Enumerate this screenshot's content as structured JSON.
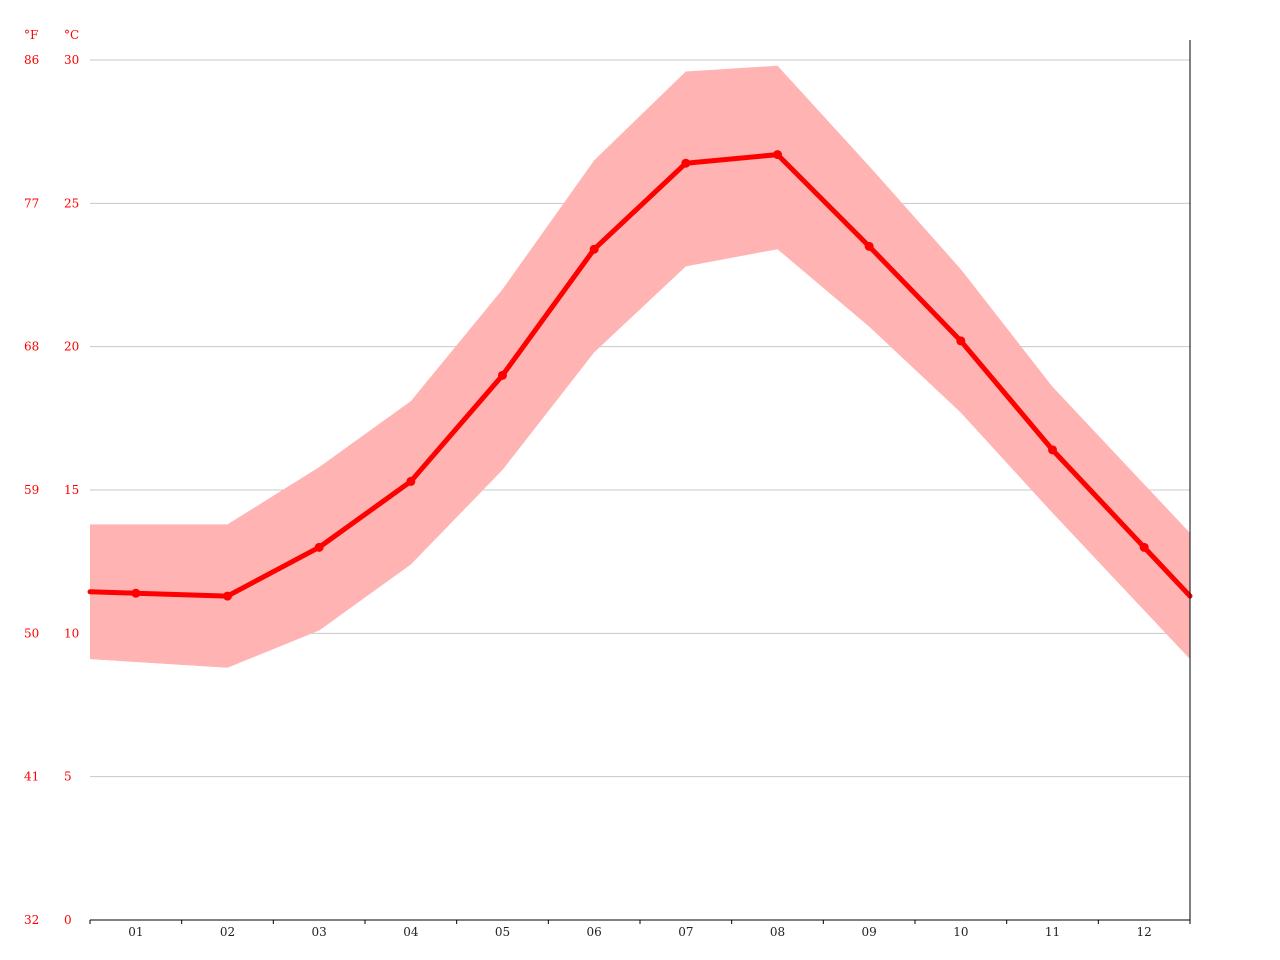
{
  "chart_data": {
    "type": "line",
    "units": {
      "fahrenheit": "°F",
      "celsius": "°C"
    },
    "categories": [
      "01",
      "02",
      "03",
      "04",
      "05",
      "06",
      "07",
      "08",
      "09",
      "10",
      "11",
      "12"
    ],
    "series": [
      {
        "values": [
          11.4,
          11.3,
          13.0,
          15.3,
          19.0,
          23.4,
          26.4,
          26.7,
          23.5,
          20.2,
          16.4,
          13.0
        ],
        "color": "#ff0000"
      }
    ],
    "band": {
      "low": [
        9.0,
        8.8,
        10.1,
        12.4,
        15.7,
        19.8,
        22.8,
        23.4,
        20.7,
        17.7,
        14.2,
        10.8
      ],
      "high": [
        13.8,
        13.8,
        15.8,
        18.1,
        22.0,
        26.5,
        29.6,
        29.8,
        26.3,
        22.7,
        18.6,
        15.2
      ],
      "color": "#ffb3b3"
    },
    "y_ticks_c": [
      "0",
      "5",
      "10",
      "15",
      "20",
      "25",
      "30"
    ],
    "y_ticks_f": [
      "32",
      "41",
      "50",
      "59",
      "68",
      "77",
      "86"
    ],
    "ylim": [
      0,
      30
    ],
    "grid": true,
    "accent_color": "#ff0000"
  }
}
